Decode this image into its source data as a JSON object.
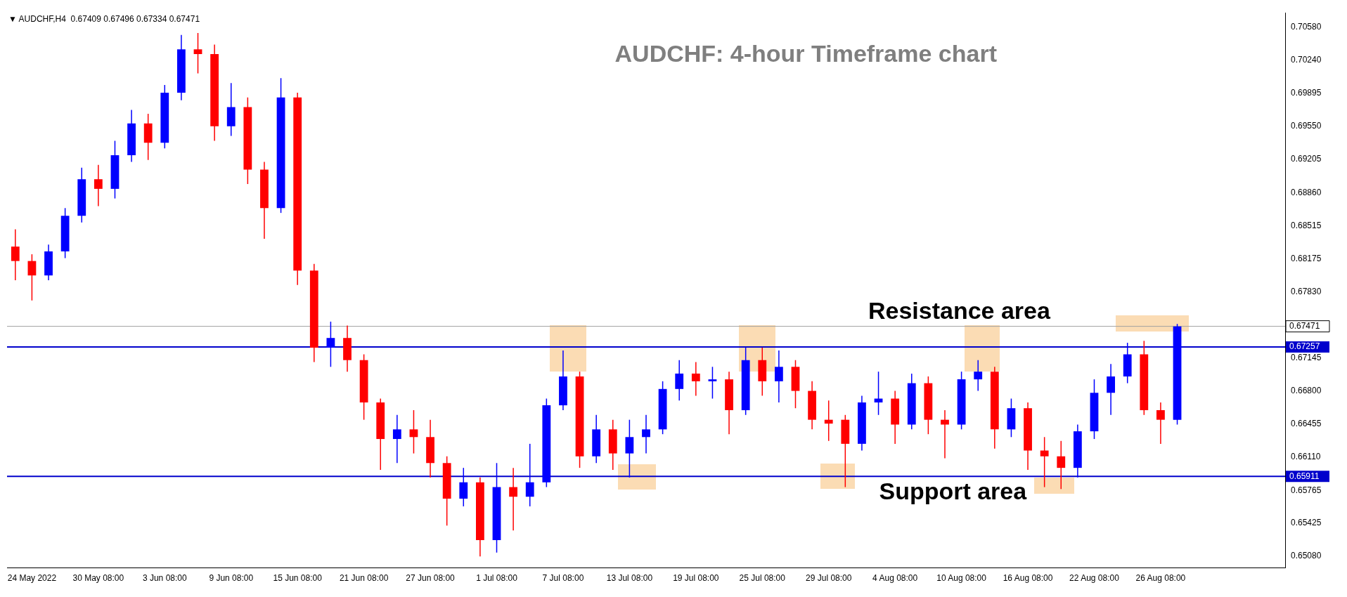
{
  "chart_data": {
    "type": "candlestick",
    "title": "AUDCHF: 4-hour Timeframe chart",
    "annotations": [
      "▼ AUDCHF,H4  0.67409 0.67496 0.67334 0.67471",
      "Resistance area",
      "Support area"
    ],
    "categories": [
      null,
      "24 May 2022",
      null,
      null,
      null,
      "30 May 08:00",
      null,
      null,
      null,
      "3 Jun 08:00",
      null,
      null,
      null,
      "9 Jun 08:00",
      null,
      null,
      null,
      "15 Jun 08:00",
      null,
      null,
      null,
      "21 Jun 08:00",
      null,
      null,
      null,
      "27 Jun 08:00",
      null,
      null,
      null,
      "1 Jul 08:00",
      null,
      null,
      null,
      "7 Jul 08:00",
      null,
      null,
      null,
      "13 Jul 08:00",
      null,
      null,
      null,
      "19 Jul 08:00",
      null,
      null,
      null,
      "25 Jul 08:00",
      null,
      null,
      null,
      "29 Jul 08:00",
      null,
      null,
      null,
      "4 Aug 08:00",
      null,
      null,
      null,
      "10 Aug 08:00",
      null,
      null,
      null,
      "16 Aug 08:00",
      null,
      null,
      null,
      "22 Aug 08:00",
      null,
      null,
      null,
      "26 Aug 08:00",
      null,
      null,
      null,
      null,
      null,
      null,
      null
    ],
    "ohlc": [
      [
        0.683,
        0.6848,
        0.6795,
        0.6815
      ],
      [
        0.6815,
        0.6822,
        0.6774,
        0.68
      ],
      [
        0.68,
        0.6832,
        0.6795,
        0.6825
      ],
      [
        0.6825,
        0.687,
        0.6818,
        0.6862
      ],
      [
        0.6862,
        0.6912,
        0.6855,
        0.69
      ],
      [
        0.69,
        0.6915,
        0.6872,
        0.689
      ],
      [
        0.689,
        0.694,
        0.688,
        0.6925
      ],
      [
        0.6925,
        0.6972,
        0.6918,
        0.6958
      ],
      [
        0.6958,
        0.6968,
        0.692,
        0.6938
      ],
      [
        0.6938,
        0.6998,
        0.6932,
        0.699
      ],
      [
        0.699,
        0.705,
        0.6982,
        0.7035
      ],
      [
        0.7035,
        0.7052,
        0.701,
        0.703
      ],
      [
        0.703,
        0.704,
        0.694,
        0.6955
      ],
      [
        0.6955,
        0.7,
        0.6945,
        0.6975
      ],
      [
        0.6975,
        0.6985,
        0.6895,
        0.691
      ],
      [
        0.691,
        0.6918,
        0.6838,
        0.687
      ],
      [
        0.687,
        0.7005,
        0.6865,
        0.6985
      ],
      [
        0.6985,
        0.699,
        0.679,
        0.6805
      ],
      [
        0.6805,
        0.6812,
        0.671,
        0.6725
      ],
      [
        0.6725,
        0.6752,
        0.6705,
        0.6735
      ],
      [
        0.6735,
        0.6748,
        0.67,
        0.6712
      ],
      [
        0.6712,
        0.6718,
        0.665,
        0.6668
      ],
      [
        0.6668,
        0.6672,
        0.6598,
        0.663
      ],
      [
        0.663,
        0.6655,
        0.6605,
        0.664
      ],
      [
        0.664,
        0.666,
        0.6615,
        0.6632
      ],
      [
        0.6632,
        0.665,
        0.659,
        0.6605
      ],
      [
        0.6605,
        0.6612,
        0.654,
        0.6568
      ],
      [
        0.6568,
        0.66,
        0.656,
        0.6585
      ],
      [
        0.6585,
        0.659,
        0.6508,
        0.6525
      ],
      [
        0.6525,
        0.6605,
        0.6512,
        0.658
      ],
      [
        0.658,
        0.66,
        0.6535,
        0.657
      ],
      [
        0.657,
        0.6625,
        0.656,
        0.6585
      ],
      [
        0.6585,
        0.6672,
        0.658,
        0.6665
      ],
      [
        0.6665,
        0.6722,
        0.666,
        0.6695
      ],
      [
        0.6695,
        0.67,
        0.66,
        0.6612
      ],
      [
        0.6612,
        0.6655,
        0.6605,
        0.664
      ],
      [
        0.664,
        0.665,
        0.6598,
        0.6615
      ],
      [
        0.6615,
        0.665,
        0.659,
        0.6632
      ],
      [
        0.6632,
        0.6655,
        0.6615,
        0.664
      ],
      [
        0.664,
        0.669,
        0.6635,
        0.6682
      ],
      [
        0.6682,
        0.6712,
        0.667,
        0.6698
      ],
      [
        0.6698,
        0.671,
        0.6675,
        0.669
      ],
      [
        0.669,
        0.6705,
        0.6672,
        0.6692
      ],
      [
        0.6692,
        0.67,
        0.6635,
        0.666
      ],
      [
        0.666,
        0.6725,
        0.6655,
        0.6712
      ],
      [
        0.6712,
        0.6725,
        0.6675,
        0.669
      ],
      [
        0.669,
        0.6722,
        0.6668,
        0.6705
      ],
      [
        0.6705,
        0.6712,
        0.6662,
        0.668
      ],
      [
        0.668,
        0.669,
        0.664,
        0.665
      ],
      [
        0.665,
        0.667,
        0.6628,
        0.6646
      ],
      [
        0.665,
        0.6655,
        0.658,
        0.6625
      ],
      [
        0.6625,
        0.6675,
        0.6618,
        0.6668
      ],
      [
        0.6668,
        0.67,
        0.6655,
        0.6672
      ],
      [
        0.6672,
        0.668,
        0.6625,
        0.6645
      ],
      [
        0.6645,
        0.6698,
        0.664,
        0.6688
      ],
      [
        0.6688,
        0.6695,
        0.6635,
        0.665
      ],
      [
        0.665,
        0.666,
        0.661,
        0.6645
      ],
      [
        0.6645,
        0.67,
        0.664,
        0.6692
      ],
      [
        0.6692,
        0.6712,
        0.668,
        0.67
      ],
      [
        0.67,
        0.6705,
        0.662,
        0.664
      ],
      [
        0.664,
        0.6672,
        0.6632,
        0.6662
      ],
      [
        0.6662,
        0.6668,
        0.6598,
        0.6618
      ],
      [
        0.6618,
        0.6632,
        0.658,
        0.6612
      ],
      [
        0.6612,
        0.6628,
        0.6578,
        0.66
      ],
      [
        0.66,
        0.6645,
        0.659,
        0.6638
      ],
      [
        0.6638,
        0.6692,
        0.663,
        0.6678
      ],
      [
        0.6678,
        0.6708,
        0.6655,
        0.6695
      ],
      [
        0.6695,
        0.673,
        0.6688,
        0.6718
      ],
      [
        0.6718,
        0.6732,
        0.6655,
        0.666
      ],
      [
        0.666,
        0.6668,
        0.6625,
        0.665
      ],
      [
        0.665,
        0.67496,
        0.6645,
        0.67471
      ],
      null,
      null,
      null,
      null,
      null,
      null
    ],
    "colors": [
      "#ff0000",
      "#ff0000",
      "#0000ff",
      "#0000ff",
      "#0000ff",
      "#ff0000",
      "#0000ff",
      "#0000ff",
      "#ff0000",
      "#0000ff",
      "#0000ff",
      "#ff0000",
      "#ff0000",
      "#0000ff",
      "#ff0000",
      "#ff0000",
      "#0000ff",
      "#ff0000",
      "#ff0000",
      "#0000ff",
      "#ff0000",
      "#ff0000",
      "#ff0000",
      "#0000ff",
      "#ff0000",
      "#ff0000",
      "#ff0000",
      "#0000ff",
      "#ff0000",
      "#0000ff",
      "#ff0000",
      "#0000ff",
      "#0000ff",
      "#0000ff",
      "#ff0000",
      "#0000ff",
      "#ff0000",
      "#0000ff",
      "#0000ff",
      "#0000ff",
      "#0000ff",
      "#ff0000",
      "#0000ff",
      "#ff0000",
      "#0000ff",
      "#ff0000",
      "#0000ff",
      "#ff0000",
      "#ff0000",
      "#ff0000",
      "#ff0000",
      "#0000ff",
      "#0000ff",
      "#ff0000",
      "#0000ff",
      "#ff0000",
      "#ff0000",
      "#0000ff",
      "#0000ff",
      "#ff0000",
      "#0000ff",
      "#ff0000",
      "#ff0000",
      "#ff0000",
      "#0000ff",
      "#0000ff",
      "#0000ff",
      "#0000ff",
      "#ff0000",
      "#ff0000",
      "#0000ff",
      null,
      null,
      null,
      null,
      null,
      null
    ],
    "ylim": [
      0.6496,
      0.7073
    ],
    "yticks": [
      {
        "value": 0.7058,
        "label": "0.70580"
      },
      {
        "value": 0.7024,
        "label": "0.70240"
      },
      {
        "value": 0.69895,
        "label": "0.69895"
      },
      {
        "value": 0.6955,
        "label": "0.69550"
      },
      {
        "value": 0.69205,
        "label": "0.69205"
      },
      {
        "value": 0.6886,
        "label": "0.68860"
      },
      {
        "value": 0.68515,
        "label": "0.68515"
      },
      {
        "value": 0.68175,
        "label": "0.68175"
      },
      {
        "value": 0.6783,
        "label": "0.67830"
      },
      {
        "value": 0.67145,
        "label": "0.67145"
      },
      {
        "value": 0.668,
        "label": "0.66800"
      },
      {
        "value": 0.66455,
        "label": "0.66455"
      },
      {
        "value": 0.6611,
        "label": "0.66110"
      },
      {
        "value": 0.65765,
        "label": "0.65765"
      },
      {
        "value": 0.65425,
        "label": "0.65425"
      },
      {
        "value": 0.6508,
        "label": "0.65080"
      }
    ],
    "ref_lines": [
      {
        "axis": "y",
        "value": 0.67471,
        "label": "0.67471",
        "color": "#a0a0a0"
      },
      {
        "axis": "y",
        "value": 0.67257,
        "label": "0.67257",
        "color": "#0000cc"
      },
      {
        "axis": "y",
        "value": 0.65911,
        "label": "0.65911",
        "color": "#0000cc"
      }
    ],
    "grid": false,
    "legend": false
  }
}
